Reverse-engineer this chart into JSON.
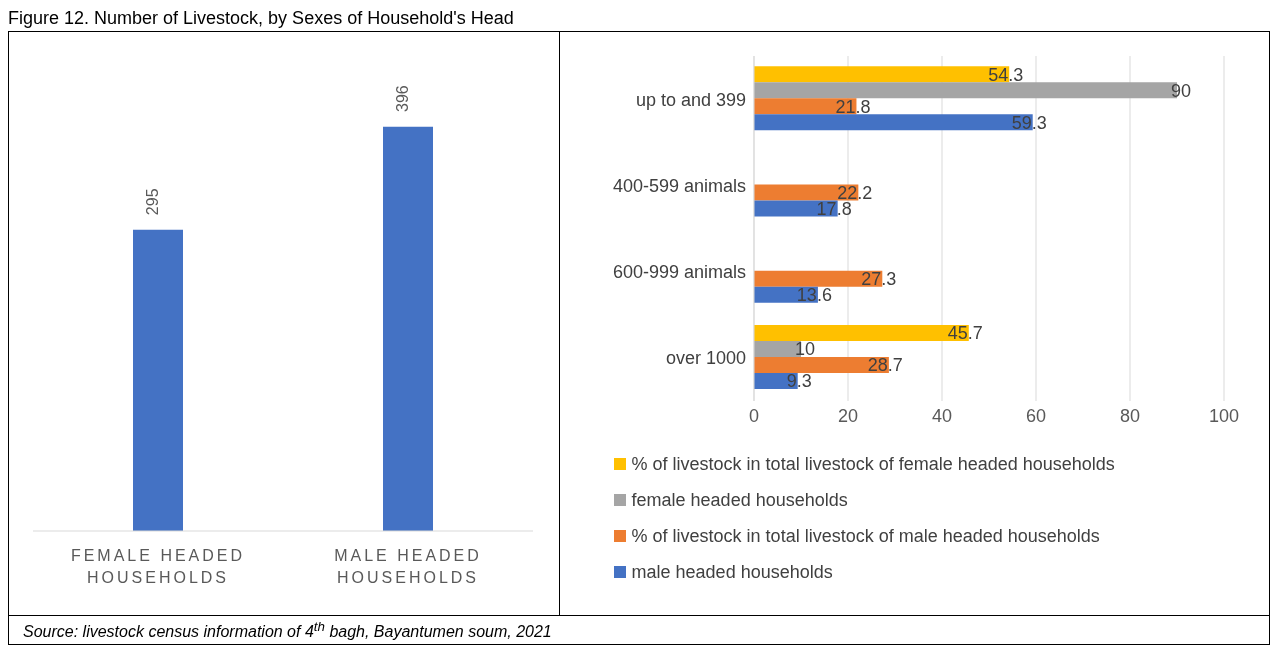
{
  "chart_data": [
    {
      "type": "bar",
      "title": "Figure 12. Number of Livestock, by Sexes of Household's Head",
      "categories": [
        "FEMALE HEADED HOUSEHOLDS",
        "MALE HEADED HOUSEHOLDS"
      ],
      "values": [
        295,
        396
      ],
      "color": "#4472c4",
      "data_labels": true,
      "annotations": [
        "Source: livestock census information of 4$^{th}$ bagh, Bayantumen soum, 2021"
      ]
    },
    {
      "type": "bar",
      "orientation": "horizontal",
      "categories": [
        "up to and 399",
        "400-599 animals",
        "600-999 animals",
        "over 1000"
      ],
      "series": [
        {
          "name": "% of livestock in total livestock of female headed households",
          "color": "#ffc000",
          "values": [
            54.3,
            null,
            null,
            45.7
          ]
        },
        {
          "name": "female headed households",
          "color": "#a5a5a5",
          "values": [
            90,
            null,
            null,
            10
          ]
        },
        {
          "name": "% of livestock in total livestock of male headed households",
          "color": "#ed7d31",
          "values": [
            21.8,
            22.2,
            27.3,
            28.7
          ]
        },
        {
          "name": "male headed households",
          "color": "#4472c4",
          "values": [
            59.3,
            17.8,
            13.6,
            9.3
          ]
        }
      ],
      "xlim": [
        0,
        100
      ],
      "xticks": [
        0,
        20,
        40,
        60,
        80,
        100
      ],
      "grid": "x",
      "data_labels": true,
      "legend": "bottom"
    }
  ]
}
